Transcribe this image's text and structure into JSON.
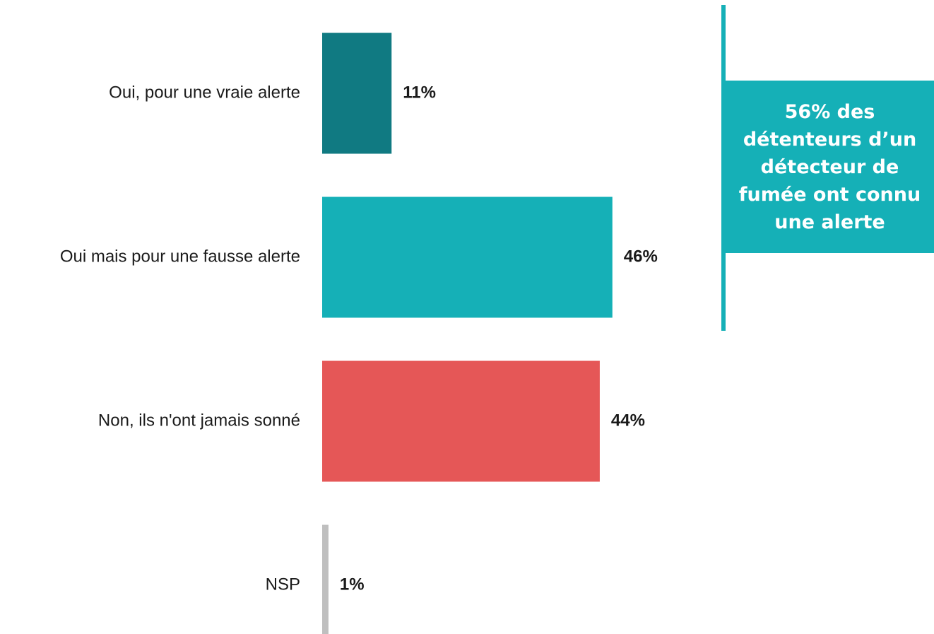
{
  "chart_data": {
    "type": "bar",
    "orientation": "horizontal",
    "categories": [
      "Oui, pour une vraie alerte",
      "Oui mais pour une fausse alerte",
      "Non, ils n'ont jamais sonné",
      "NSP"
    ],
    "values": [
      11,
      46,
      44,
      1
    ],
    "value_labels": [
      "11%",
      "46%",
      "44%",
      "1%"
    ],
    "unit": "%",
    "colors": [
      "#107A82",
      "#15B0B7",
      "#E55757",
      "#BFBFBF"
    ],
    "xlim": [
      0,
      100
    ],
    "grid": false,
    "legend": "none"
  },
  "callout": {
    "text": "56% des\ndétenteurs d’un\ndétecteur de\nfumée ont connu\nune alerte",
    "color": "#15B0B7"
  }
}
